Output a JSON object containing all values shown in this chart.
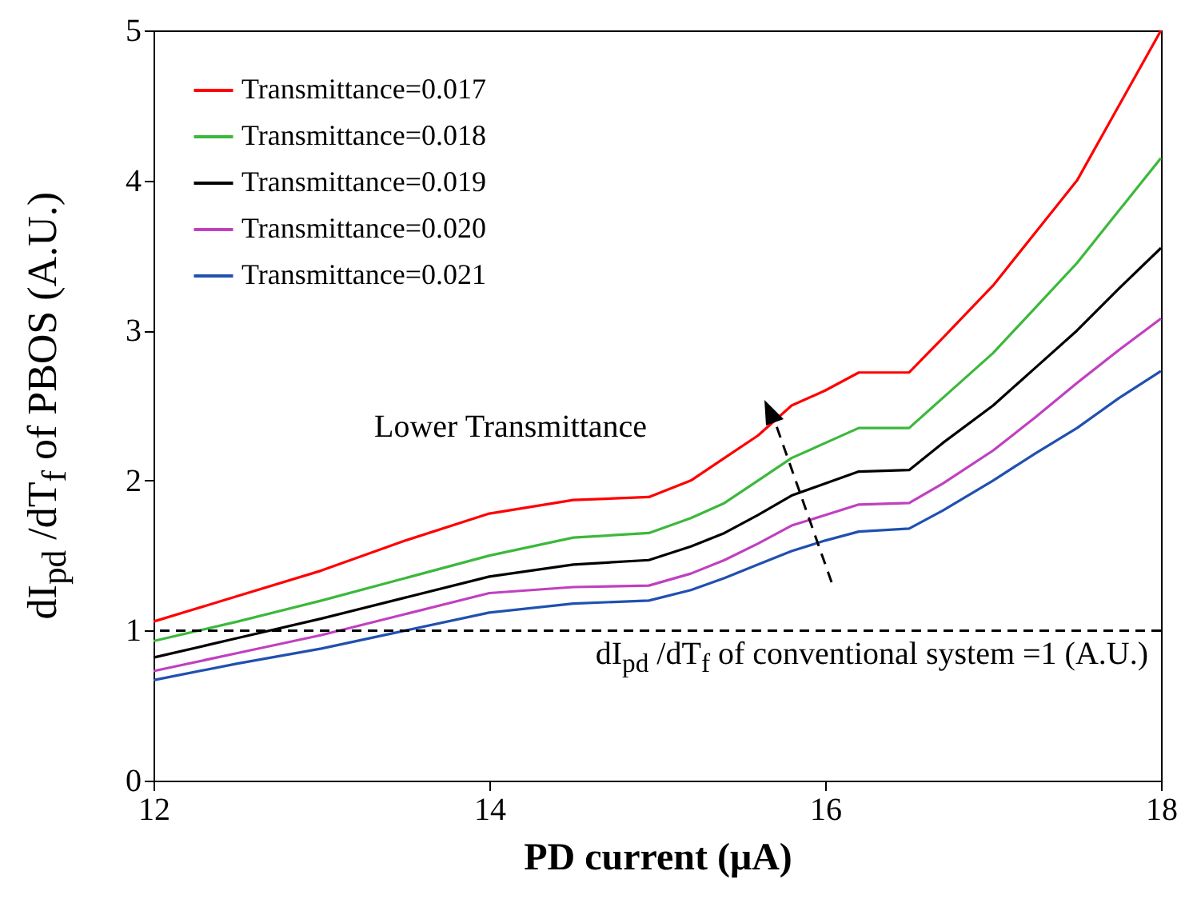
{
  "chart_data": {
    "type": "line",
    "xlabel": "PD current (μA)",
    "ylabel": "dI$_{pd}$ /dT$_{f}$ of PBOS (A.U.)",
    "x": [
      12,
      12.5,
      13,
      13.5,
      14,
      14.5,
      14.95,
      15.2,
      15.4,
      15.6,
      15.8,
      16,
      16.2,
      16.5,
      16.7,
      17,
      17.25,
      17.5,
      17.75,
      18
    ],
    "xlim": [
      12,
      18
    ],
    "xticks": [
      12,
      14,
      16,
      18
    ],
    "ylim": [
      0,
      5
    ],
    "yticks": [
      0,
      1,
      2,
      3,
      4,
      5
    ],
    "grid": false,
    "legend": "top left",
    "line_style": "solid",
    "marker": "none",
    "series": [
      {
        "name": "Transmittance=0.017",
        "color": "#ff0000",
        "values": [
          1.06,
          1.23,
          1.4,
          1.6,
          1.78,
          1.87,
          1.89,
          2.0,
          2.15,
          2.3,
          2.5,
          2.6,
          2.72,
          2.72,
          2.95,
          3.3,
          3.65,
          4.0,
          4.5,
          5.0
        ]
      },
      {
        "name": "Transmittance=0.018",
        "color": "#3cb83c",
        "values": [
          0.93,
          1.06,
          1.2,
          1.35,
          1.5,
          1.62,
          1.65,
          1.75,
          1.85,
          2.0,
          2.15,
          2.25,
          2.35,
          2.35,
          2.55,
          2.85,
          3.15,
          3.45,
          3.8,
          4.15
        ]
      },
      {
        "name": "Transmittance=0.019",
        "color": "#000000",
        "values": [
          0.82,
          0.95,
          1.08,
          1.22,
          1.36,
          1.44,
          1.47,
          1.56,
          1.65,
          1.77,
          1.9,
          1.98,
          2.06,
          2.07,
          2.25,
          2.5,
          2.75,
          3.0,
          3.28,
          3.55
        ]
      },
      {
        "name": "Transmittance=0.020",
        "color": "#c040c0",
        "values": [
          0.73,
          0.85,
          0.97,
          1.11,
          1.25,
          1.29,
          1.3,
          1.38,
          1.47,
          1.58,
          1.7,
          1.77,
          1.84,
          1.85,
          1.98,
          2.2,
          2.42,
          2.65,
          2.87,
          3.08
        ]
      },
      {
        "name": "Transmittance=0.021",
        "color": "#2050b0",
        "values": [
          0.67,
          0.78,
          0.88,
          1.0,
          1.12,
          1.18,
          1.2,
          1.27,
          1.35,
          1.44,
          1.53,
          1.6,
          1.66,
          1.68,
          1.8,
          2.0,
          2.18,
          2.35,
          2.55,
          2.73
        ]
      }
    ],
    "ref_lines": [
      {
        "axis": "y",
        "value": 1,
        "label": "dI$_{pd}$ /dT$_{f}$  of conventional system =1 (A.U.)",
        "line_style": "dashed",
        "color": "#000000"
      }
    ],
    "annotations": [
      "Lower Transmittance"
    ]
  }
}
